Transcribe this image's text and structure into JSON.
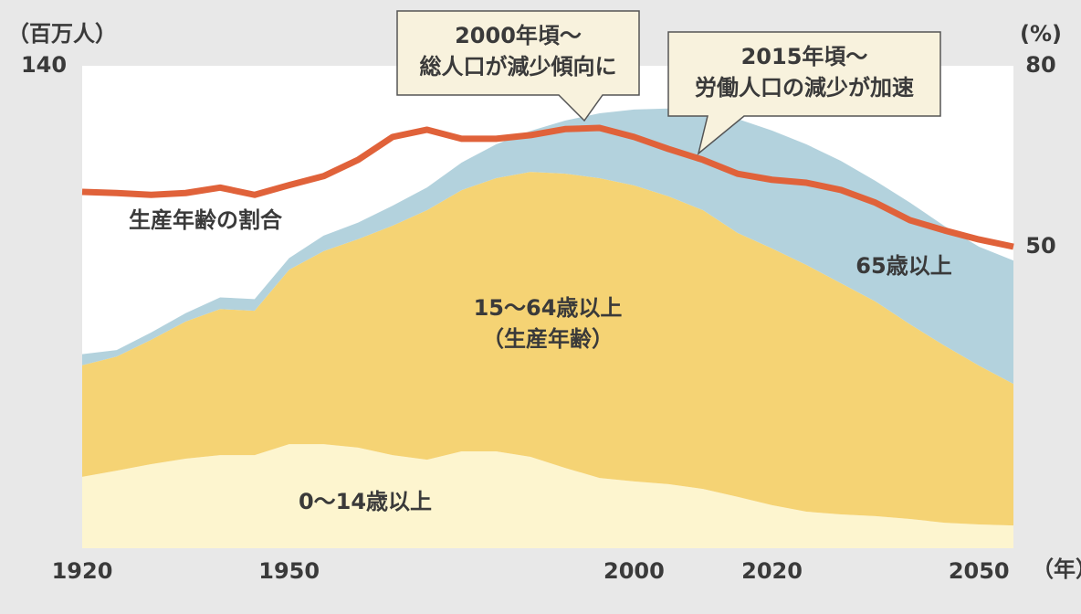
{
  "chart_data": {
    "type": "stacked_area_line",
    "ylabel": "（百万人）",
    "y2label": "(%)",
    "xlabel": "（年）",
    "x": [
      1920,
      1925,
      1930,
      1935,
      1940,
      1945,
      1950,
      1955,
      1960,
      1965,
      1970,
      1975,
      1980,
      1985,
      1990,
      1995,
      2000,
      2005,
      2010,
      2015,
      2020,
      2025,
      2030,
      2035,
      2040,
      2045,
      2050,
      2055
    ],
    "xlim": [
      1920,
      2055
    ],
    "xticks": [
      1920,
      1950,
      2000,
      2020,
      2050
    ],
    "ylim": [
      0,
      140
    ],
    "yticks": [
      140
    ],
    "y2lim": [
      0,
      80
    ],
    "y2ticks": [
      80,
      50
    ],
    "series": [
      {
        "name": "0〜14歳以上",
        "color": "#fdf5cf",
        "values": [
          20.7,
          22.5,
          24.4,
          26.0,
          27.0,
          27.0,
          30.2,
          30.2,
          29.2,
          27.0,
          25.7,
          28.1,
          28.1,
          26.5,
          23.3,
          20.4,
          19.4,
          18.6,
          17.2,
          14.9,
          12.5,
          10.6,
          9.8,
          9.3,
          8.5,
          7.4,
          6.9,
          6.6
        ]
      },
      {
        "name": "15〜64歳以上\n（生産年齢）",
        "color": "#f5d374",
        "values": [
          32.4,
          33.1,
          36.1,
          39.8,
          42.4,
          41.9,
          50.6,
          56.0,
          60.5,
          66.6,
          72.4,
          75.8,
          79.3,
          82.7,
          85.4,
          87.0,
          85.9,
          83.5,
          80.9,
          76.6,
          74.5,
          71.6,
          67.1,
          62.3,
          56.5,
          51.4,
          46.1,
          41.1
        ]
      },
      {
        "name": "65歳以上",
        "color": "#b3d2dd",
        "values": [
          3.2,
          1.9,
          2.1,
          2.4,
          3.4,
          3.4,
          3.4,
          4.5,
          4.8,
          5.8,
          6.6,
          8.0,
          9.8,
          11.9,
          15.4,
          18.8,
          22.0,
          25.5,
          28.6,
          33.1,
          34.2,
          35.0,
          35.5,
          35.0,
          35.3,
          34.7,
          34.5,
          35.8
        ]
      },
      {
        "name": "生産年齢の割合",
        "color": "#e0623a",
        "axis": "y2",
        "values": [
          59.1,
          58.9,
          58.6,
          58.9,
          59.8,
          58.6,
          60.2,
          61.7,
          64.4,
          68.2,
          69.4,
          67.9,
          67.9,
          68.5,
          69.5,
          69.7,
          68.2,
          66.2,
          64.4,
          62.1,
          61.1,
          60.6,
          59.4,
          57.3,
          54.4,
          52.7,
          51.2,
          50.0
        ]
      }
    ],
    "annotations": [
      {
        "text": [
          "2000年頃〜",
          "総人口が減少傾向に"
        ]
      },
      {
        "text": [
          "2015年頃〜",
          "労働人口の減少が加速"
        ]
      }
    ]
  }
}
